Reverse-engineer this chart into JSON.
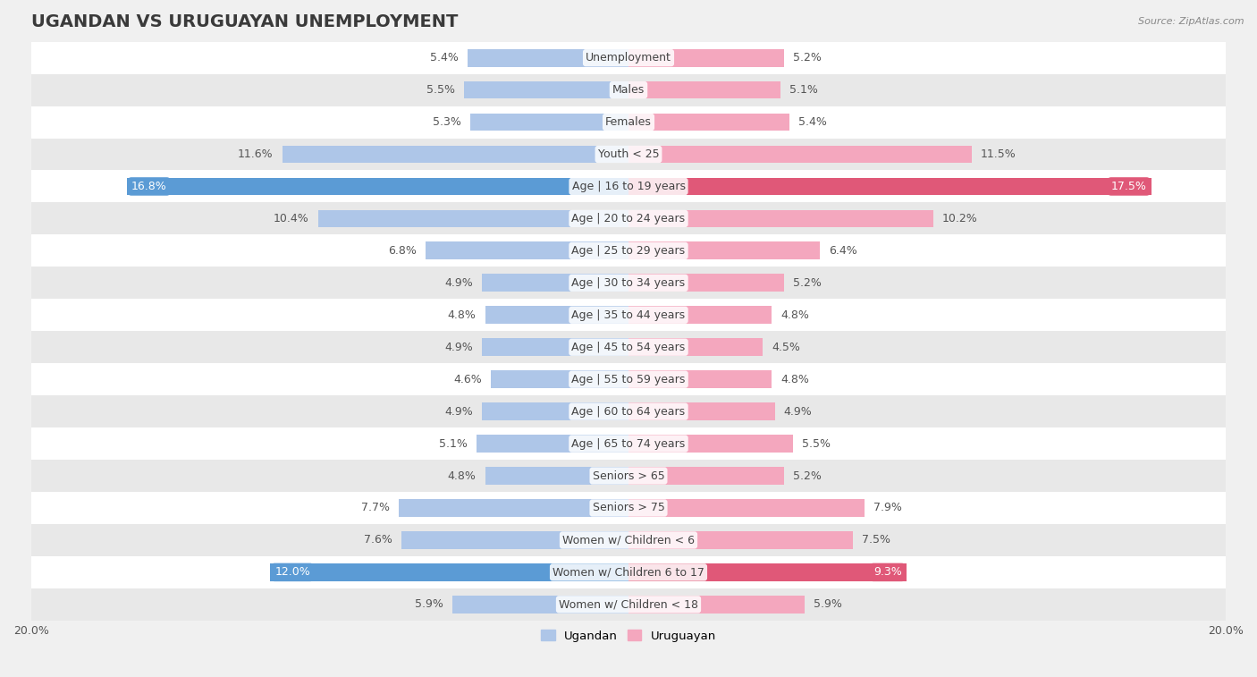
{
  "title": "UGANDAN VS URUGUAYAN UNEMPLOYMENT",
  "source": "Source: ZipAtlas.com",
  "categories": [
    "Unemployment",
    "Males",
    "Females",
    "Youth < 25",
    "Age | 16 to 19 years",
    "Age | 20 to 24 years",
    "Age | 25 to 29 years",
    "Age | 30 to 34 years",
    "Age | 35 to 44 years",
    "Age | 45 to 54 years",
    "Age | 55 to 59 years",
    "Age | 60 to 64 years",
    "Age | 65 to 74 years",
    "Seniors > 65",
    "Seniors > 75",
    "Women w/ Children < 6",
    "Women w/ Children 6 to 17",
    "Women w/ Children < 18"
  ],
  "ugandan": [
    5.4,
    5.5,
    5.3,
    11.6,
    16.8,
    10.4,
    6.8,
    4.9,
    4.8,
    4.9,
    4.6,
    4.9,
    5.1,
    4.8,
    7.7,
    7.6,
    12.0,
    5.9
  ],
  "uruguayan": [
    5.2,
    5.1,
    5.4,
    11.5,
    17.5,
    10.2,
    6.4,
    5.2,
    4.8,
    4.5,
    4.8,
    4.9,
    5.5,
    5.2,
    7.9,
    7.5,
    9.3,
    5.9
  ],
  "ugandan_color_default": "#aec6e8",
  "ugandan_color_highlight": "#5b9bd5",
  "uruguayan_color_default": "#f4a7be",
  "uruguayan_color_highlight": "#e05878",
  "x_max": 20.0,
  "bg_color": "#f0f0f0",
  "row_color_odd": "#ffffff",
  "row_color_even": "#e8e8e8",
  "highlight_indices": [
    4,
    16
  ],
  "title_fontsize": 14,
  "label_fontsize": 9,
  "value_fontsize": 9
}
